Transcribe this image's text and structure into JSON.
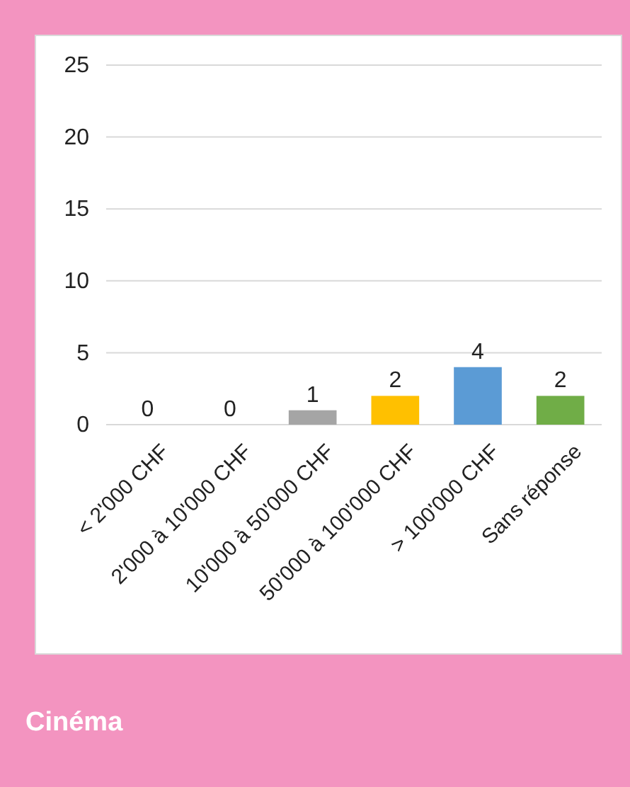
{
  "chart_data": {
    "type": "bar",
    "title": "Cinéma",
    "categories": [
      "< 2'000 CHF",
      "2'000 à 10'000 CHF",
      "10'000 à 50'000 CHF",
      "50'000 à 100'000 CHF",
      "> 100'000 CHF",
      "Sans réponse"
    ],
    "values": [
      0,
      0,
      1,
      2,
      4,
      2
    ],
    "colors": [
      "#4472c4",
      "#ed7d31",
      "#a5a5a5",
      "#ffc000",
      "#5b9bd5",
      "#70ad47"
    ],
    "ylim": [
      0,
      25
    ],
    "yticks": [
      0,
      5,
      10,
      15,
      20,
      25
    ],
    "grid": "y",
    "data_labels": true
  }
}
